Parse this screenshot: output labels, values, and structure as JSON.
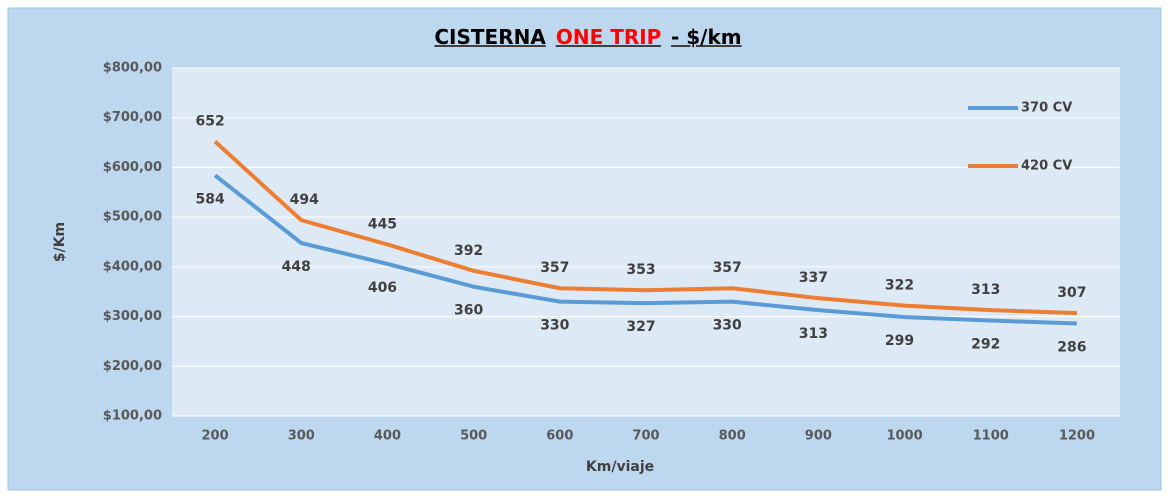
{
  "chart_data": {
    "type": "line",
    "title": [
      {
        "text": "CISTERNA",
        "color": "#000000"
      },
      {
        "text": "ONE TRIP",
        "color": "#ff0000"
      },
      {
        "text": "- $/km",
        "color": "#000000"
      }
    ],
    "x_label": "Km/viaje",
    "y_label": "$/Km",
    "categories": [
      200,
      300,
      400,
      500,
      600,
      700,
      800,
      900,
      1000,
      1100,
      1200
    ],
    "series": [
      {
        "name": "370 CV",
        "color": "#5b9bd5",
        "values": [
          584,
          448,
          406,
          360,
          330,
          327,
          330,
          313,
          299,
          292,
          286
        ]
      },
      {
        "name": "420 CV",
        "color": "#ed7d31",
        "values": [
          652,
          494,
          445,
          392,
          357,
          353,
          357,
          337,
          322,
          313,
          307
        ]
      }
    ],
    "ylim": [
      100,
      800
    ],
    "yticks": [
      {
        "value": 100,
        "label": "$100,00"
      },
      {
        "value": 200,
        "label": "$200,00"
      },
      {
        "value": 300,
        "label": "$300,00"
      },
      {
        "value": 400,
        "label": "$400,00"
      },
      {
        "value": 500,
        "label": "$500,00"
      },
      {
        "value": 600,
        "label": "$600,00"
      },
      {
        "value": 700,
        "label": "$700,00"
      },
      {
        "value": 800,
        "label": "$800,00"
      }
    ],
    "grid": true
  }
}
